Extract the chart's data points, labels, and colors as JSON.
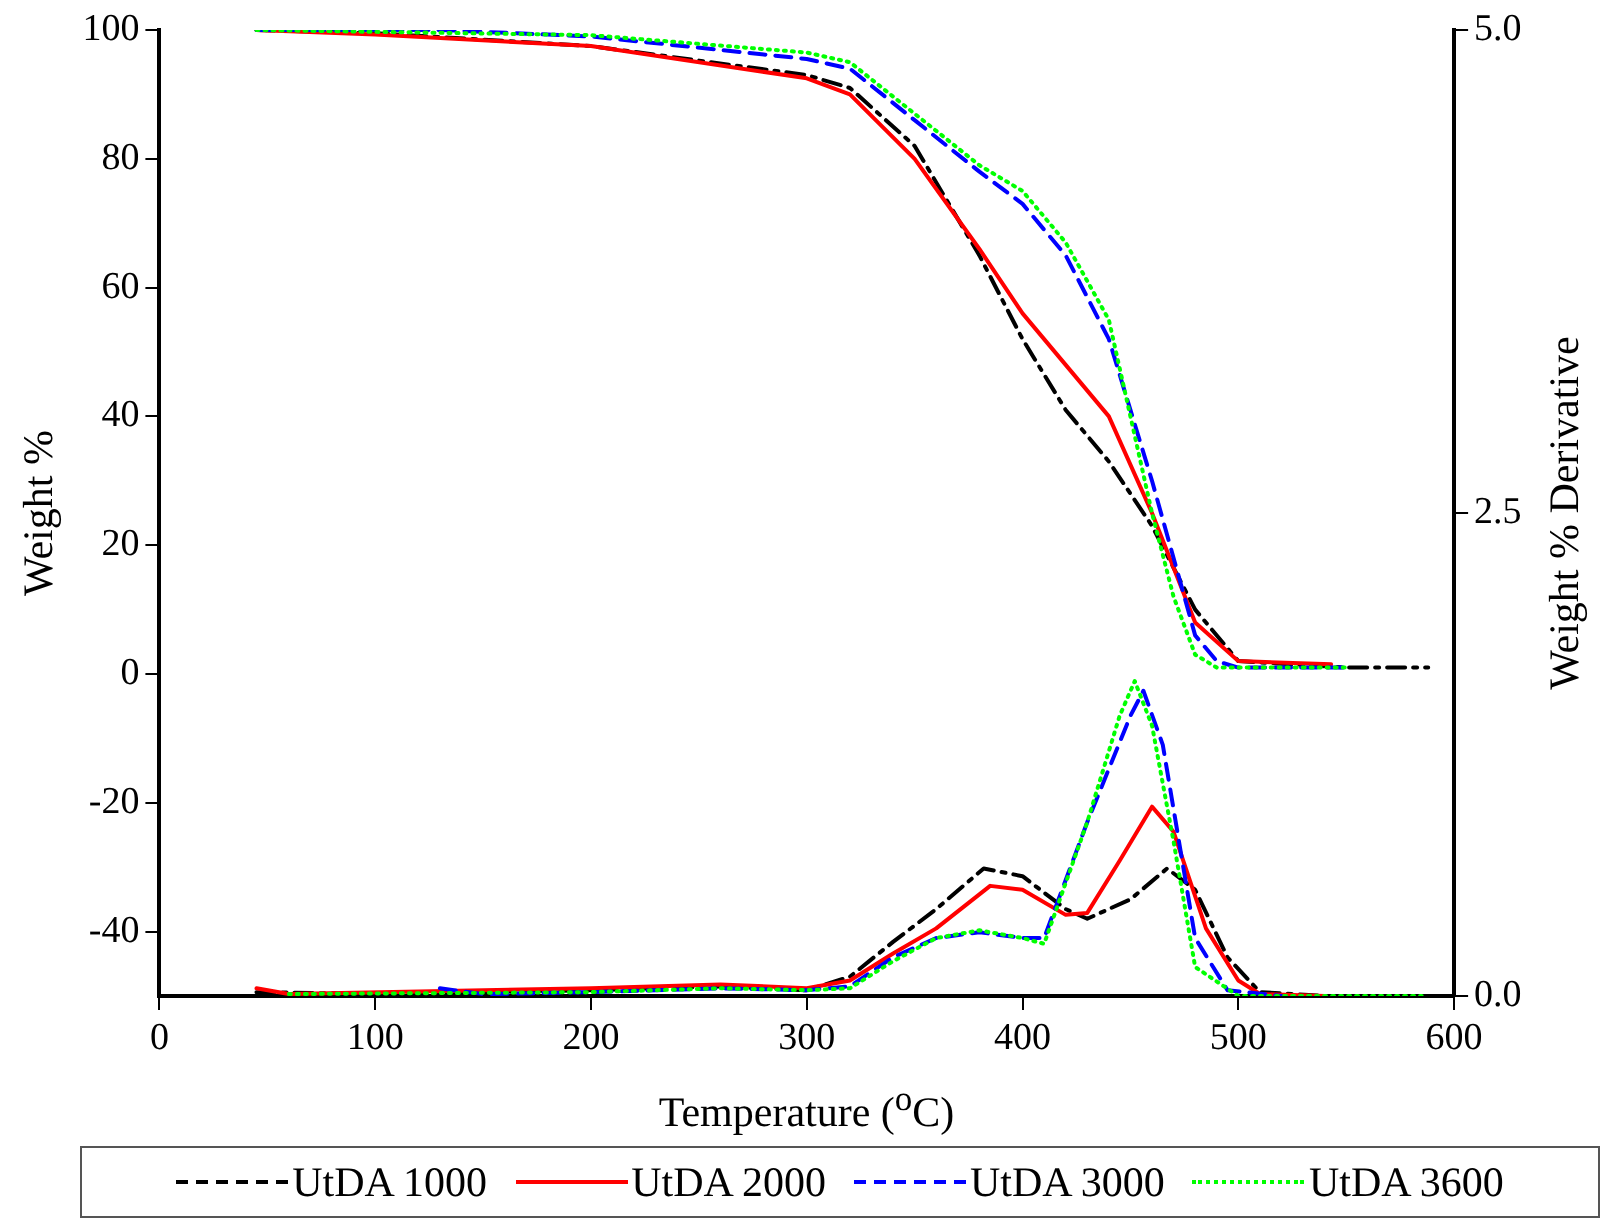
{
  "chart_data": {
    "type": "line",
    "xlabel": "Temperature ($^{o}$C)",
    "ylabel": "Weight %",
    "y2label": "Weight % Derivative",
    "xlim": [
      0,
      600
    ],
    "xticks": [
      0,
      100,
      200,
      300,
      400,
      500,
      600
    ],
    "ylim": [
      -50,
      100
    ],
    "yticks": [
      -40,
      -20,
      0,
      20,
      40,
      60,
      80,
      100
    ],
    "y2lim": [
      0,
      5
    ],
    "y2ticks": [
      {
        "value": 0,
        "label": "0.0"
      },
      {
        "value": 2.5,
        "label": "2.5"
      },
      {
        "value": 5,
        "label": "5.0"
      }
    ],
    "grid": false,
    "legend": "bottom",
    "marker": "none",
    "series": [
      {
        "name": "UtDA 1000",
        "color": "#000000",
        "line_style": "dashdot",
        "x": [
          45,
          100,
          200,
          300,
          320,
          350,
          380,
          400,
          420,
          440,
          460,
          480,
          500,
          550,
          588
        ],
        "values": [
          100,
          99.5,
          97.5,
          93,
          91,
          82,
          65,
          52,
          41,
          33,
          23,
          10,
          2,
          1,
          1
        ]
      },
      {
        "name": "UtDA 2000",
        "color": "#ff0000",
        "line_style": "solid",
        "x": [
          45,
          100,
          200,
          300,
          320,
          350,
          380,
          400,
          420,
          440,
          460,
          480,
          500,
          543
        ],
        "values": [
          100,
          99.3,
          97.5,
          92.5,
          90,
          80,
          66,
          56,
          48,
          40,
          25,
          8,
          2,
          1.5
        ]
      },
      {
        "name": "UtDA 3000",
        "color": "#0000ff",
        "line_style": "dashed",
        "x": [
          45,
          130,
          200,
          300,
          320,
          350,
          380,
          400,
          420,
          440,
          460,
          480,
          490,
          500,
          550
        ],
        "values": [
          100,
          100,
          99,
          95.5,
          94,
          86,
          78,
          73,
          65,
          52,
          30,
          6,
          2,
          1,
          1
        ]
      },
      {
        "name": "UtDA 3600",
        "color": "#00ff00",
        "line_style": "dotted",
        "x": [
          45,
          200,
          300,
          320,
          350,
          380,
          400,
          420,
          440,
          460,
          470,
          480,
          490,
          550
        ],
        "values": [
          100,
          99.2,
          96.5,
          95,
          87,
          79,
          75,
          67,
          55,
          25,
          12,
          3,
          1,
          1
        ]
      },
      {
        "color": "#000000",
        "line_style": "dashdot",
        "axis": "y2",
        "x": [
          45,
          100,
          200,
          260,
          300,
          320,
          340,
          360,
          382,
          400,
          420,
          430,
          450,
          467,
          480,
          495,
          510,
          540,
          580
        ],
        "values": [
          0.02,
          0.01,
          0.03,
          0.05,
          0.03,
          0.1,
          0.28,
          0.45,
          0.66,
          0.62,
          0.45,
          0.4,
          0.5,
          0.66,
          0.55,
          0.2,
          0.02,
          0,
          0
        ]
      },
      {
        "color": "#ff0000",
        "line_style": "solid",
        "axis": "y2",
        "x": [
          45,
          60,
          200,
          260,
          300,
          320,
          340,
          360,
          385,
          400,
          420,
          430,
          445,
          460,
          470,
          485,
          500,
          510,
          540
        ],
        "values": [
          0.04,
          0.01,
          0.04,
          0.06,
          0.04,
          0.08,
          0.22,
          0.35,
          0.57,
          0.55,
          0.42,
          0.43,
          0.7,
          0.98,
          0.85,
          0.35,
          0.08,
          0.01,
          0
        ]
      },
      {
        "color": "#0000ff",
        "line_style": "dashed",
        "axis": "y2",
        "x": [
          130,
          150,
          200,
          260,
          300,
          320,
          340,
          360,
          380,
          400,
          410,
          430,
          450,
          456,
          465,
          480,
          495,
          520
        ],
        "values": [
          0.04,
          0.01,
          0.02,
          0.04,
          0.03,
          0.05,
          0.2,
          0.3,
          0.33,
          0.3,
          0.3,
          0.9,
          1.45,
          1.58,
          1.3,
          0.3,
          0.03,
          0
        ]
      },
      {
        "color": "#00ff00",
        "line_style": "dotted",
        "axis": "y2",
        "x": [
          60,
          200,
          260,
          300,
          320,
          340,
          360,
          380,
          400,
          410,
          430,
          445,
          452,
          460,
          470,
          480,
          500,
          585
        ],
        "values": [
          0.01,
          0.02,
          0.04,
          0.03,
          0.04,
          0.18,
          0.3,
          0.34,
          0.3,
          0.27,
          0.9,
          1.45,
          1.63,
          1.4,
          0.8,
          0.15,
          0,
          0
        ]
      }
    ]
  }
}
